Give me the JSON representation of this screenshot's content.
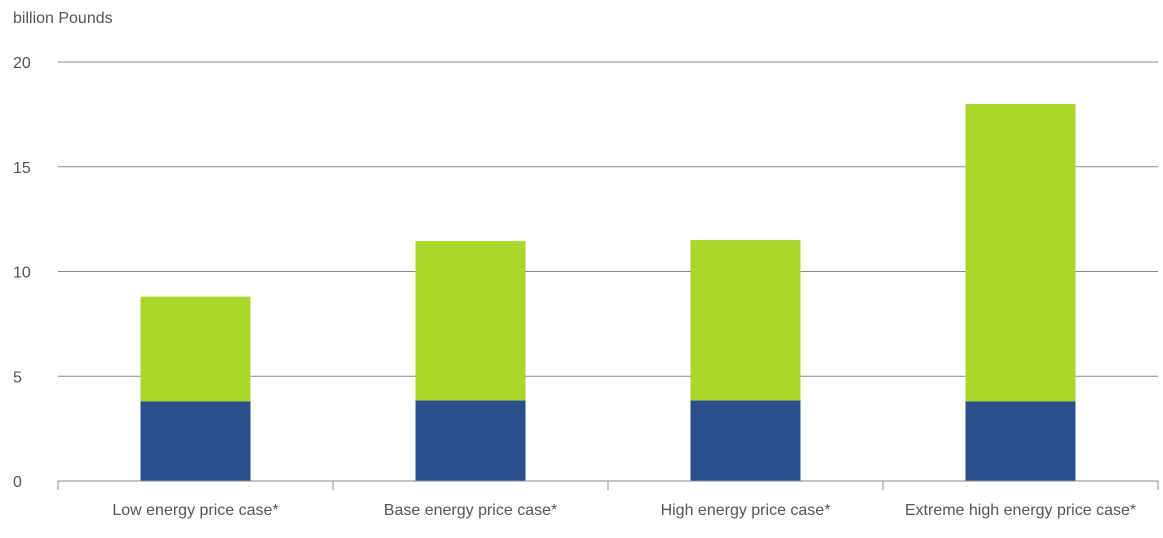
{
  "chart_data": {
    "type": "bar",
    "stacked": true,
    "title": "",
    "xlabel": "",
    "ylabel": "billion Pounds",
    "ylim": [
      0,
      20
    ],
    "yticks": [
      0,
      5,
      10,
      15,
      20
    ],
    "grid": true,
    "legend": "none",
    "categories": [
      "Low energy price case*",
      "Base energy price case*",
      "High energy price case*",
      "Extreme high energy price case*"
    ],
    "series": [
      {
        "color": "#2b4f8c",
        "values": [
          3.8,
          3.85,
          3.85,
          3.8
        ]
      },
      {
        "color": "#abd62b",
        "values": [
          5.0,
          7.6,
          7.65,
          14.2
        ]
      }
    ]
  }
}
